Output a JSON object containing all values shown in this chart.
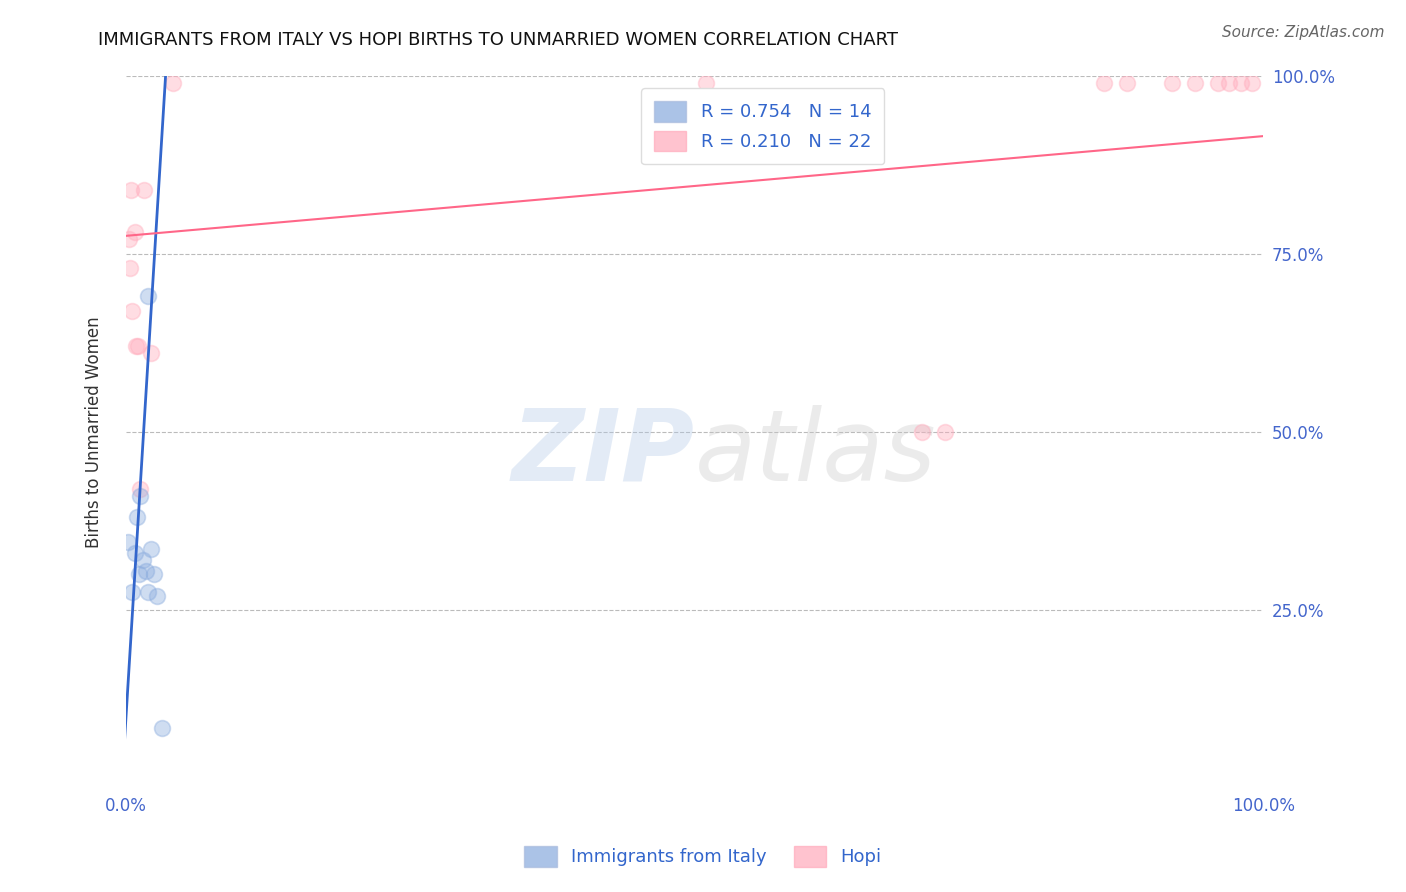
{
  "title": "IMMIGRANTS FROM ITALY VS HOPI BIRTHS TO UNMARRIED WOMEN CORRELATION CHART",
  "source": "Source: ZipAtlas.com",
  "ylabel": "Births to Unmarried Women",
  "blue_label": "Immigrants from Italy",
  "pink_label": "Hopi",
  "blue_r": 0.754,
  "blue_n": 14,
  "pink_r": 0.21,
  "pink_n": 22,
  "blue_color": "#88aadd",
  "pink_color": "#ffaabb",
  "blue_line_color": "#3366cc",
  "pink_line_color": "#ff6688",
  "xlim": [
    0,
    1.0
  ],
  "ylim": [
    0,
    1.0
  ],
  "xticks": [
    0,
    0.1,
    0.2,
    0.3,
    0.4,
    0.5,
    0.6,
    0.7,
    0.8,
    0.9,
    1.0
  ],
  "yticks": [
    0.25,
    0.5,
    0.75,
    1.0
  ],
  "xticklabels_show": [
    "0.0%",
    "100.0%"
  ],
  "yticklabels": [
    "25.0%",
    "50.0%",
    "75.0%",
    "100.0%"
  ],
  "blue_scatter_x": [
    0.008,
    0.012,
    0.015,
    0.018,
    0.02,
    0.022,
    0.025,
    0.028,
    0.01,
    0.013,
    0.032,
    0.002,
    0.02,
    0.006
  ],
  "blue_scatter_y": [
    0.33,
    0.3,
    0.32,
    0.305,
    0.69,
    0.335,
    0.3,
    0.27,
    0.38,
    0.41,
    0.085,
    0.345,
    0.275,
    0.275
  ],
  "pink_scatter_x": [
    0.005,
    0.008,
    0.016,
    0.022,
    0.003,
    0.004,
    0.006,
    0.009,
    0.011,
    0.013,
    0.042,
    0.7,
    0.72,
    0.86,
    0.88,
    0.92,
    0.94,
    0.96,
    0.97,
    0.51,
    0.98,
    0.99
  ],
  "pink_scatter_y": [
    0.84,
    0.78,
    0.84,
    0.61,
    0.77,
    0.73,
    0.67,
    0.62,
    0.62,
    0.42,
    0.99,
    0.5,
    0.5,
    0.99,
    0.99,
    0.99,
    0.99,
    0.99,
    0.99,
    0.99,
    0.99,
    0.99
  ],
  "blue_line_x": [
    -0.005,
    0.036
  ],
  "blue_line_y": [
    -0.04,
    1.02
  ],
  "pink_line_x": [
    0.0,
    1.0
  ],
  "pink_line_y": [
    0.775,
    0.915
  ],
  "watermark_zip": "ZIP",
  "watermark_atlas": "atlas",
  "background_color": "#ffffff",
  "grid_color": "#bbbbbb",
  "title_fontsize": 13,
  "axis_label_fontsize": 12,
  "tick_fontsize": 12,
  "legend_fontsize": 13,
  "source_fontsize": 11,
  "marker_size": 130,
  "marker_alpha": 0.4,
  "title_color": "#111111",
  "tick_color": "#4466cc",
  "source_color": "#666666"
}
